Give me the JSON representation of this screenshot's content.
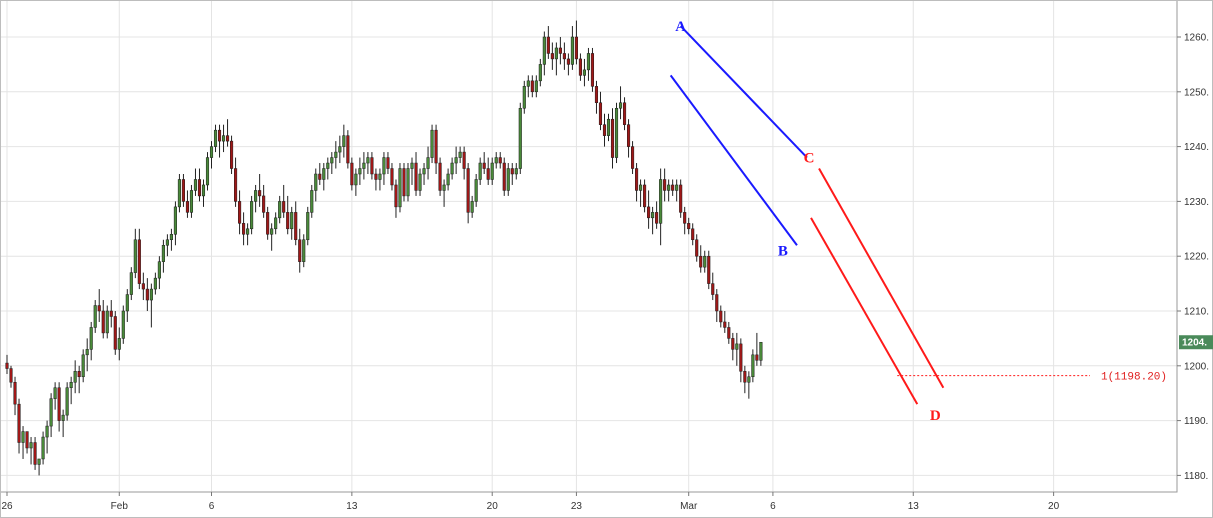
{
  "chart_data": {
    "type": "candlestick",
    "title": "",
    "xlabel": "",
    "ylabel": "",
    "ylim": [
      1175,
      1265
    ],
    "y_ticks": [
      1180,
      1190,
      1200,
      1210,
      1220,
      1230,
      1240,
      1250,
      1260
    ],
    "y_tick_labels": [
      "1180.",
      "1190.",
      "1200.",
      "1210.",
      "1220.",
      "1230.",
      "1240.",
      "1250.",
      "1260."
    ],
    "x_ticks": [
      {
        "i": 0,
        "label": "26"
      },
      {
        "i": 28,
        "label": "Feb"
      },
      {
        "i": 51,
        "label": "6"
      },
      {
        "i": 86,
        "label": "13"
      },
      {
        "i": 121,
        "label": "20"
      },
      {
        "i": 142,
        "label": "23"
      },
      {
        "i": 170,
        "label": "Mar"
      },
      {
        "i": 191,
        "label": "6"
      },
      {
        "i": 226,
        "label": "13"
      },
      {
        "i": 261,
        "label": "20"
      }
    ],
    "candles": [
      [
        1200.5,
        1202,
        1198.5,
        1199.5
      ],
      [
        1199.5,
        1200,
        1196,
        1197
      ],
      [
        1197,
        1198,
        1191,
        1193
      ],
      [
        1193,
        1194,
        1184,
        1186
      ],
      [
        1186,
        1189,
        1183,
        1188
      ],
      [
        1188,
        1188,
        1184,
        1185
      ],
      [
        1185,
        1187,
        1182,
        1186
      ],
      [
        1186,
        1187,
        1181,
        1182
      ],
      [
        1182,
        1183,
        1180,
        1183
      ],
      [
        1183,
        1188,
        1182,
        1187
      ],
      [
        1187,
        1190,
        1184,
        1189
      ],
      [
        1189,
        1195,
        1187,
        1194
      ],
      [
        1194,
        1197,
        1192,
        1196
      ],
      [
        1196,
        1197,
        1188,
        1190
      ],
      [
        1190,
        1192,
        1187,
        1191
      ],
      [
        1191,
        1197,
        1190,
        1196
      ],
      [
        1196,
        1198,
        1193,
        1197
      ],
      [
        1197,
        1201,
        1195,
        1199
      ],
      [
        1199,
        1200,
        1195,
        1198
      ],
      [
        1198,
        1203,
        1197,
        1202
      ],
      [
        1202,
        1205,
        1199,
        1203
      ],
      [
        1203,
        1208,
        1201,
        1207
      ],
      [
        1207,
        1212,
        1206,
        1211
      ],
      [
        1211,
        1214,
        1208,
        1210
      ],
      [
        1210,
        1212,
        1205,
        1206
      ],
      [
        1206,
        1211,
        1205,
        1210
      ],
      [
        1210,
        1212,
        1207,
        1209
      ],
      [
        1209,
        1210,
        1202,
        1203
      ],
      [
        1203,
        1207,
        1201,
        1205
      ],
      [
        1205,
        1211,
        1204,
        1210
      ],
      [
        1210,
        1214,
        1208,
        1213
      ],
      [
        1213,
        1218,
        1212,
        1217
      ],
      [
        1217,
        1225,
        1216,
        1223
      ],
      [
        1223,
        1225,
        1214,
        1215
      ],
      [
        1215,
        1217,
        1212,
        1214
      ],
      [
        1214,
        1216,
        1210,
        1212
      ],
      [
        1212,
        1215,
        1207,
        1214
      ],
      [
        1214,
        1217,
        1213,
        1216
      ],
      [
        1216,
        1220,
        1214,
        1219
      ],
      [
        1219,
        1223,
        1217,
        1222
      ],
      [
        1222,
        1224,
        1220,
        1223
      ],
      [
        1223,
        1225,
        1221,
        1224
      ],
      [
        1224,
        1230,
        1222,
        1229
      ],
      [
        1229,
        1235,
        1228,
        1234
      ],
      [
        1234,
        1235,
        1229,
        1230
      ],
      [
        1230,
        1232,
        1227,
        1228
      ],
      [
        1228,
        1233,
        1227,
        1232
      ],
      [
        1232,
        1236,
        1231,
        1234
      ],
      [
        1234,
        1236,
        1230,
        1231
      ],
      [
        1231,
        1234,
        1229,
        1233
      ],
      [
        1233,
        1239,
        1232,
        1238
      ],
      [
        1238,
        1241,
        1236,
        1240
      ],
      [
        1240,
        1244,
        1239,
        1243
      ],
      [
        1243,
        1244,
        1238,
        1241
      ],
      [
        1241,
        1244,
        1239,
        1242
      ],
      [
        1242,
        1245,
        1240,
        1241
      ],
      [
        1241,
        1242,
        1235,
        1236
      ],
      [
        1236,
        1238,
        1229,
        1230
      ],
      [
        1230,
        1232,
        1224,
        1226
      ],
      [
        1226,
        1228,
        1222,
        1224
      ],
      [
        1224,
        1226,
        1222,
        1225
      ],
      [
        1225,
        1231,
        1224,
        1230
      ],
      [
        1230,
        1233,
        1228,
        1232
      ],
      [
        1232,
        1235,
        1229,
        1231
      ],
      [
        1231,
        1233,
        1227,
        1228
      ],
      [
        1228,
        1229,
        1223,
        1224
      ],
      [
        1224,
        1226,
        1221,
        1225
      ],
      [
        1225,
        1228,
        1224,
        1227
      ],
      [
        1227,
        1231,
        1226,
        1230
      ],
      [
        1230,
        1233,
        1227,
        1228
      ],
      [
        1228,
        1231,
        1224,
        1225
      ],
      [
        1225,
        1229,
        1223,
        1228
      ],
      [
        1228,
        1230,
        1222,
        1223
      ],
      [
        1223,
        1225,
        1217,
        1219
      ],
      [
        1219,
        1224,
        1218,
        1223
      ],
      [
        1223,
        1229,
        1222,
        1228
      ],
      [
        1228,
        1233,
        1227,
        1232
      ],
      [
        1232,
        1236,
        1230,
        1235
      ],
      [
        1235,
        1237,
        1233,
        1234
      ],
      [
        1234,
        1237,
        1232,
        1236
      ],
      [
        1236,
        1238,
        1234,
        1237
      ],
      [
        1237,
        1239,
        1235,
        1238
      ],
      [
        1238,
        1241,
        1236,
        1239
      ],
      [
        1239,
        1242,
        1237,
        1240
      ],
      [
        1240,
        1244,
        1238,
        1242
      ],
      [
        1242,
        1243,
        1236,
        1237
      ],
      [
        1237,
        1238,
        1232,
        1233
      ],
      [
        1233,
        1236,
        1231,
        1235
      ],
      [
        1235,
        1238,
        1233,
        1236
      ],
      [
        1236,
        1239,
        1234,
        1237
      ],
      [
        1237,
        1239,
        1235,
        1238
      ],
      [
        1238,
        1239,
        1234,
        1235
      ],
      [
        1235,
        1236,
        1232,
        1234
      ],
      [
        1234,
        1236,
        1232,
        1235
      ],
      [
        1235,
        1239,
        1233,
        1238
      ],
      [
        1238,
        1239,
        1235,
        1236
      ],
      [
        1236,
        1237,
        1232,
        1233
      ],
      [
        1233,
        1234,
        1227,
        1229
      ],
      [
        1229,
        1237,
        1228,
        1236
      ],
      [
        1236,
        1237,
        1230,
        1231
      ],
      [
        1231,
        1237,
        1230,
        1236
      ],
      [
        1236,
        1238,
        1233,
        1237
      ],
      [
        1237,
        1239,
        1231,
        1232
      ],
      [
        1232,
        1236,
        1231,
        1235
      ],
      [
        1235,
        1237,
        1233,
        1236
      ],
      [
        1236,
        1240,
        1234,
        1238
      ],
      [
        1238,
        1244,
        1237,
        1243
      ],
      [
        1243,
        1244,
        1235,
        1237
      ],
      [
        1237,
        1238,
        1231,
        1232
      ],
      [
        1232,
        1234,
        1229,
        1233
      ],
      [
        1233,
        1236,
        1232,
        1235
      ],
      [
        1235,
        1238,
        1234,
        1237
      ],
      [
        1237,
        1240,
        1235,
        1238
      ],
      [
        1238,
        1240,
        1237,
        1239
      ],
      [
        1239,
        1240,
        1234,
        1236
      ],
      [
        1236,
        1237,
        1226,
        1228
      ],
      [
        1228,
        1231,
        1227,
        1230
      ],
      [
        1230,
        1235,
        1229,
        1234
      ],
      [
        1234,
        1238,
        1233,
        1237
      ],
      [
        1237,
        1239,
        1235,
        1236
      ],
      [
        1236,
        1238,
        1233,
        1234
      ],
      [
        1234,
        1238,
        1233,
        1237
      ],
      [
        1237,
        1239,
        1236,
        1238
      ],
      [
        1238,
        1239,
        1236,
        1237
      ],
      [
        1237,
        1238,
        1231,
        1232
      ],
      [
        1232,
        1237,
        1231,
        1236
      ],
      [
        1236,
        1237,
        1233,
        1235
      ],
      [
        1235,
        1237,
        1234,
        1236
      ],
      [
        1236,
        1248,
        1235,
        1247
      ],
      [
        1247,
        1252,
        1246,
        1251
      ],
      [
        1251,
        1253,
        1249,
        1252
      ],
      [
        1252,
        1253,
        1249,
        1250
      ],
      [
        1250,
        1253,
        1249,
        1252
      ],
      [
        1252,
        1256,
        1251,
        1255
      ],
      [
        1255,
        1261,
        1253,
        1260
      ],
      [
        1260,
        1262,
        1256,
        1257
      ],
      [
        1257,
        1259,
        1254,
        1256
      ],
      [
        1256,
        1259,
        1253,
        1258
      ],
      [
        1258,
        1260,
        1255,
        1257
      ],
      [
        1257,
        1259,
        1254,
        1256
      ],
      [
        1256,
        1257,
        1253,
        1255
      ],
      [
        1255,
        1262,
        1254,
        1260
      ],
      [
        1260,
        1263,
        1255,
        1256
      ],
      [
        1256,
        1257,
        1252,
        1253
      ],
      [
        1253,
        1256,
        1251,
        1254
      ],
      [
        1254,
        1258,
        1252,
        1257
      ],
      [
        1257,
        1258,
        1250,
        1251
      ],
      [
        1251,
        1252,
        1246,
        1248
      ],
      [
        1248,
        1250,
        1243,
        1244
      ],
      [
        1244,
        1246,
        1240,
        1242
      ],
      [
        1242,
        1246,
        1241,
        1245
      ],
      [
        1245,
        1247,
        1236,
        1238
      ],
      [
        1238,
        1248,
        1237,
        1247
      ],
      [
        1247,
        1251,
        1245,
        1248
      ],
      [
        1248,
        1249,
        1243,
        1244
      ],
      [
        1244,
        1245,
        1238,
        1240
      ],
      [
        1240,
        1241,
        1235,
        1236
      ],
      [
        1236,
        1237,
        1230,
        1232
      ],
      [
        1232,
        1234,
        1229,
        1233
      ],
      [
        1233,
        1234,
        1228,
        1229
      ],
      [
        1229,
        1232,
        1225,
        1227
      ],
      [
        1227,
        1229,
        1224,
        1228
      ],
      [
        1228,
        1230,
        1225,
        1226
      ],
      [
        1226,
        1236,
        1222,
        1234
      ],
      [
        1234,
        1236,
        1230,
        1232
      ],
      [
        1232,
        1234,
        1230,
        1233
      ],
      [
        1233,
        1234,
        1231,
        1232
      ],
      [
        1232,
        1234,
        1230,
        1233
      ],
      [
        1233,
        1234,
        1227,
        1228
      ],
      [
        1228,
        1229,
        1224,
        1226
      ],
      [
        1226,
        1227,
        1224,
        1225
      ],
      [
        1225,
        1226,
        1222,
        1223
      ],
      [
        1223,
        1224,
        1219,
        1220
      ],
      [
        1220,
        1222,
        1217,
        1218
      ],
      [
        1218,
        1221,
        1217,
        1220
      ],
      [
        1220,
        1221,
        1214,
        1215
      ],
      [
        1215,
        1217,
        1212,
        1213
      ],
      [
        1213,
        1214,
        1208,
        1210
      ],
      [
        1210,
        1211,
        1207,
        1208
      ],
      [
        1208,
        1210,
        1206,
        1207
      ],
      [
        1207,
        1208,
        1204,
        1205
      ],
      [
        1205,
        1206,
        1201,
        1203
      ],
      [
        1203,
        1206,
        1200,
        1204
      ],
      [
        1204,
        1205,
        1197,
        1199
      ],
      [
        1199,
        1200,
        1195,
        1197
      ],
      [
        1197,
        1199,
        1194,
        1198
      ],
      [
        1198,
        1203,
        1197,
        1202
      ],
      [
        1202,
        1206,
        1200,
        1201
      ],
      [
        1201,
        1204,
        1200,
        1204.3
      ]
    ],
    "colors": {
      "up": "#4a8a3a",
      "down": "#a01818",
      "wick": "#222222"
    },
    "wave_labels": [
      {
        "label": "A",
        "i": 168,
        "price": 1262,
        "color": "#1a1aff"
      },
      {
        "label": "B",
        "i": 193.5,
        "price": 1221,
        "color": "#1a1aff"
      },
      {
        "label": "C",
        "i": 200,
        "price": 1238,
        "color": "#ff1a1a"
      },
      {
        "label": "D",
        "i": 231.5,
        "price": 1191,
        "color": "#ff1a1a"
      }
    ],
    "channels": [
      {
        "color": "#1a1aff",
        "lines": [
          [
            [
              168,
              1262
            ],
            [
              199.5,
              1238
            ]
          ],
          [
            [
              165.5,
              1253
            ],
            [
              197,
              1222
            ]
          ]
        ]
      },
      {
        "color": "#ff1a1a",
        "lines": [
          [
            [
              202.5,
              1236
            ],
            [
              233.5,
              1196
            ]
          ],
          [
            [
              200.5,
              1227
            ],
            [
              227,
              1193
            ]
          ]
        ]
      }
    ],
    "fib_level": {
      "label": "1(1198.20)",
      "price": 1198.2,
      "color": "#ff1a1a"
    },
    "last_price": {
      "label": "1204.",
      "price": 1204.3,
      "bg": "#4a8a5a"
    },
    "grid": true,
    "legend": "none"
  }
}
